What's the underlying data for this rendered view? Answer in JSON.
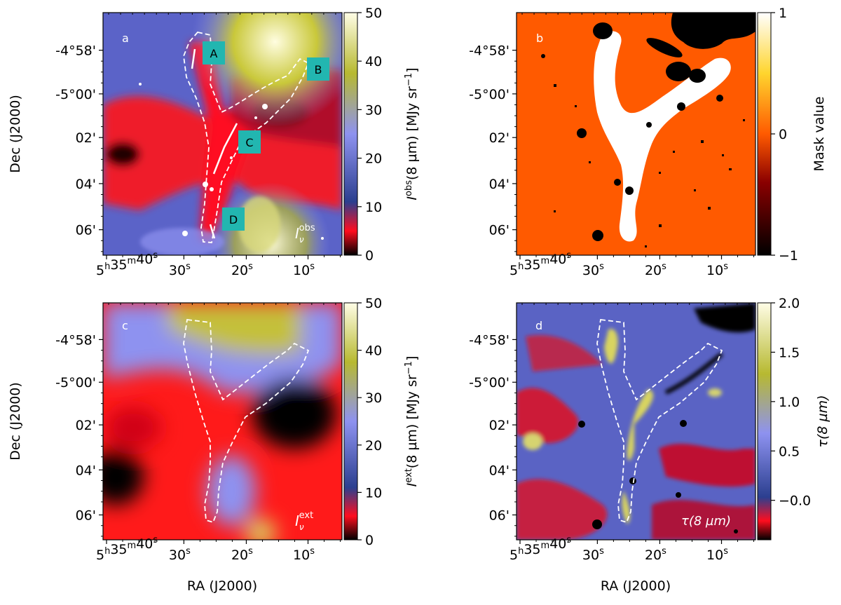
{
  "chart_data": [
    {
      "type": "heatmap",
      "panel_label": "a",
      "xlabel": "",
      "ylabel": "Dec (J2000)",
      "xticklabels": [
        "5h35m40s",
        "30s",
        "20s",
        "10s"
      ],
      "yticklabels": [
        "-4°58'",
        "-5°00'",
        "02'",
        "04'",
        "06'"
      ],
      "colorbar": {
        "label_main": "I",
        "label_sup": "obs",
        "label_sub": "ν",
        "label_rest": "(8 µm) [MJy sr",
        "label_unit_sup": "−1",
        "label_close": "]",
        "ticks": [
          "0",
          "10",
          "20",
          "30",
          "40",
          "50"
        ],
        "range": [
          0,
          50
        ],
        "colors": [
          "#000000",
          "#ff0d1e",
          "#2b3f8f",
          "#8e92f0",
          "#b7b930",
          "#fffde6"
        ]
      },
      "annotations": [
        "A",
        "B",
        "C",
        "D"
      ],
      "corner_label": {
        "main": "I",
        "sub": "ν",
        "sup": "obs"
      }
    },
    {
      "type": "heatmap",
      "panel_label": "b",
      "xlabel": "",
      "ylabel": "",
      "xticklabels": [
        "5h35m40s",
        "30s",
        "20s",
        "10s"
      ],
      "yticklabels": [
        "-4°58'",
        "-5°00'",
        "02'",
        "04'",
        "06'"
      ],
      "colorbar": {
        "label_main": "Mask value",
        "ticks": [
          "−1",
          "0",
          "1"
        ],
        "range": [
          -1,
          1
        ],
        "colors": [
          "#000000",
          "#ff5a00",
          "#ffd52e",
          "#ffffff"
        ]
      }
    },
    {
      "type": "heatmap",
      "panel_label": "c",
      "xlabel": "RA (J2000)",
      "ylabel": "Dec (J2000)",
      "xticklabels": [
        "5h35m40s",
        "30s",
        "20s",
        "10s"
      ],
      "yticklabels": [
        "-4°58'",
        "-5°00'",
        "02'",
        "04'",
        "06'"
      ],
      "colorbar": {
        "label_main": "I",
        "label_sup": "ext",
        "label_sub": "ν",
        "label_rest": "(8 µm) [MJy sr",
        "label_unit_sup": "−1",
        "label_close": "]",
        "ticks": [
          "0",
          "10",
          "20",
          "30",
          "40",
          "50"
        ],
        "range": [
          0,
          50
        ],
        "colors": [
          "#000000",
          "#ff0d1e",
          "#2b3f8f",
          "#8e92f0",
          "#b7b930",
          "#fffde6"
        ]
      },
      "corner_label": {
        "main": "I",
        "sub": "ν",
        "sup": "ext"
      }
    },
    {
      "type": "heatmap",
      "panel_label": "d",
      "xlabel": "RA (J2000)",
      "ylabel": "",
      "xticklabels": [
        "5h35m40s",
        "30s",
        "20s",
        "10s"
      ],
      "yticklabels": [
        "-4°58'",
        "-5°00'",
        "02'",
        "04'",
        "06'"
      ],
      "colorbar": {
        "label_main": "τ(8 µm)",
        "ticks": [
          "−0.0",
          "0.5",
          "1.0",
          "1.5",
          "2.0"
        ],
        "range": [
          -0.4,
          2.0
        ],
        "colors": [
          "#000000",
          "#ff0d1e",
          "#2b3f8f",
          "#8e92f0",
          "#b7b930",
          "#fffde6"
        ]
      },
      "corner_label": {
        "main": "τ(8 µm)"
      }
    }
  ]
}
